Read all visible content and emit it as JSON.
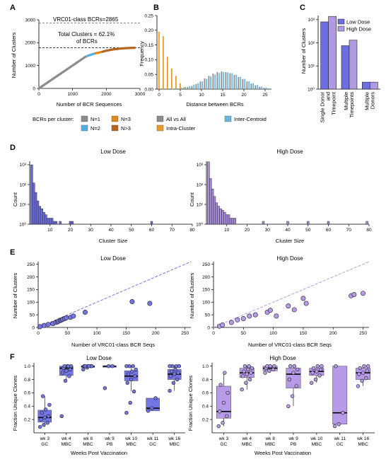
{
  "panels": {
    "A": {
      "label": "A",
      "ylabel": "Number of Clusters",
      "xlabel": "Number of BCR Sequences",
      "xticks": [
        "0",
        "1000",
        "2000",
        "3000"
      ],
      "yticks": [
        "0",
        "1000",
        "2000",
        "3000"
      ],
      "ref_label": "VRC01-class BCRs=2865",
      "note_line1": "Total Clusters = 62.1%",
      "note_line2": "of BCRs",
      "legend_title": "BCRs per cluster:",
      "legend": [
        {
          "label": "N=1",
          "color": "#8c8c8c"
        },
        {
          "label": "N=2",
          "color": "#4fb1e3"
        },
        {
          "label": "N=3",
          "color": "#e08a1e"
        },
        {
          "label": "N>3",
          "color": "#b5651d"
        }
      ]
    },
    "B": {
      "label": "B",
      "ylabel": "Frequency",
      "xlabel": "Distance between BCRs",
      "xticks": [
        "0",
        "5",
        "10",
        "15",
        "20",
        "25"
      ],
      "yticks": [
        "0.00",
        "0.05",
        "0.10",
        "0.15",
        "0.20",
        "0.25"
      ],
      "legend": [
        {
          "label": "All vs All",
          "color": "#8c8c8c"
        },
        {
          "label": "Intra-Cluster",
          "color": "#e89b2a"
        },
        {
          "label": "Inter-Centroid",
          "color": "#6bb8de"
        }
      ]
    },
    "C": {
      "label": "C",
      "ylabel": "Number of Clusters",
      "yticks": [
        "10⁰",
        "10¹",
        "10²",
        "10³"
      ],
      "legend": [
        {
          "label": "Low Dose",
          "color": "#6d6ee0"
        },
        {
          "label": "High Dose",
          "color": "#b09ae2"
        }
      ]
    },
    "D": {
      "label": "D",
      "ylabel": "Count",
      "xlabel": "Cluster Size",
      "titles": [
        "Low Dose",
        "High Dose"
      ],
      "xticks": [
        "10",
        "20",
        "30",
        "40",
        "50",
        "60",
        "70",
        "80"
      ],
      "yticks": [
        "10⁰",
        "10¹",
        "10²",
        "10³"
      ]
    },
    "E": {
      "label": "E",
      "ylabel": "Number of Clusters",
      "xlabel": "Number of VRC01-class BCR Seqs",
      "titles": [
        "Low Dose",
        "High Dose"
      ],
      "xticks": [
        "0",
        "50",
        "100",
        "150",
        "200",
        "250"
      ],
      "yticks": [
        "0",
        "50",
        "100",
        "150",
        "200",
        "250"
      ]
    },
    "F": {
      "label": "F",
      "ylabel": "Fraction Unique Clones",
      "xlabel": "Weeks Post Vaccination",
      "titles": [
        "Low Dose",
        "High Dose"
      ],
      "yticks": [
        "0.2",
        "0.4",
        "0.6",
        "0.8",
        "1.0"
      ]
    }
  },
  "chart_data": [
    {
      "type": "line",
      "id": "A",
      "xlim": [
        0,
        3000
      ],
      "ylim": [
        0,
        3000
      ],
      "reference_line": 2865,
      "total_clusters_line": 1779,
      "segments": [
        {
          "name": "N=1",
          "x": [
            0,
            1400
          ],
          "y": [
            0,
            1400
          ]
        },
        {
          "name": "N=2",
          "x": [
            1400,
            1640
          ],
          "y": [
            1400,
            1520
          ]
        },
        {
          "name": "N=3",
          "x": [
            1640,
            1860
          ],
          "y": [
            1520,
            1593
          ]
        },
        {
          "name": "N>3",
          "x": [
            1860,
            2000,
            2200,
            2400,
            2600,
            2865
          ],
          "y": [
            1593,
            1650,
            1705,
            1740,
            1762,
            1779
          ]
        }
      ]
    },
    {
      "type": "bar",
      "id": "B",
      "xlim": [
        0,
        27
      ],
      "ylim": [
        0,
        0.25
      ],
      "x": [
        0,
        1,
        2,
        3,
        4,
        5,
        6,
        7,
        8,
        9,
        10,
        11,
        12,
        13,
        14,
        15,
        16,
        17,
        18,
        19,
        20,
        21,
        22,
        23,
        24,
        25,
        26
      ],
      "series": [
        {
          "name": "All vs All",
          "values": [
            0,
            0,
            0,
            0,
            0,
            0.002,
            0.004,
            0.007,
            0.011,
            0.017,
            0.026,
            0.036,
            0.045,
            0.053,
            0.058,
            0.06,
            0.058,
            0.054,
            0.048,
            0.041,
            0.034,
            0.026,
            0.019,
            0.013,
            0.008,
            0.004,
            0.002
          ]
        },
        {
          "name": "Intra-Cluster",
          "values": [
            0.195,
            0.18,
            0.11,
            0.07,
            0.045,
            0.02,
            0.006,
            0.002,
            0,
            0,
            0,
            0,
            0,
            0,
            0,
            0,
            0,
            0,
            0,
            0,
            0,
            0,
            0,
            0,
            0,
            0,
            0
          ]
        },
        {
          "name": "Inter-Centroid",
          "values": [
            0,
            0,
            0,
            0.001,
            0.003,
            0.005,
            0.007,
            0.01,
            0.015,
            0.02,
            0.027,
            0.035,
            0.043,
            0.05,
            0.055,
            0.058,
            0.057,
            0.054,
            0.049,
            0.042,
            0.035,
            0.027,
            0.02,
            0.014,
            0.009,
            0.005,
            0.002
          ]
        }
      ]
    },
    {
      "type": "bar",
      "id": "C",
      "log_y": true,
      "ylim": [
        1,
        1500
      ],
      "categories": [
        "Single Donor and Timepoint",
        "Multiple Timepoints",
        "Multiple Donors"
      ],
      "series": [
        {
          "name": "Low Dose",
          "values": [
            800,
            75,
            2
          ]
        },
        {
          "name": "High Dose",
          "values": [
            1380,
            130,
            2
          ]
        }
      ]
    },
    {
      "type": "bar",
      "id": "D-low",
      "title": "Low Dose",
      "log_y": true,
      "xlim": [
        0,
        80
      ],
      "ylim": [
        1,
        1500
      ],
      "x": [
        1,
        2,
        3,
        4,
        5,
        6,
        7,
        8,
        9,
        10,
        11,
        12,
        13,
        14,
        15,
        16,
        17,
        18,
        19,
        20,
        21,
        22,
        23,
        24,
        25,
        26,
        27,
        28,
        29,
        30,
        31,
        32,
        33,
        34,
        35,
        36,
        37,
        38,
        39,
        40,
        41,
        42,
        43,
        44,
        45,
        46,
        47,
        48,
        49,
        50,
        51,
        52,
        53,
        54,
        55,
        56,
        57,
        58,
        59,
        60
      ],
      "values": [
        990,
        120,
        40,
        15,
        8,
        6,
        4,
        3,
        2,
        2,
        2,
        1,
        1,
        0,
        1,
        0,
        0,
        0,
        0,
        1,
        1,
        0,
        0,
        0,
        0,
        0,
        0,
        0,
        0,
        0,
        0,
        0,
        0,
        0,
        0,
        0,
        0,
        0,
        0,
        0,
        0,
        0,
        0,
        0,
        0,
        0,
        0,
        0,
        0,
        0,
        0,
        0,
        0,
        0,
        0,
        0,
        0,
        0,
        0,
        1
      ]
    },
    {
      "type": "bar",
      "id": "D-high",
      "title": "High Dose",
      "log_y": true,
      "xlim": [
        0,
        80
      ],
      "ylim": [
        1,
        1500
      ],
      "x": [
        1,
        2,
        3,
        4,
        5,
        6,
        7,
        8,
        9,
        10,
        11,
        12,
        13,
        14,
        15,
        16,
        17,
        18,
        19,
        20,
        21,
        22,
        23,
        24,
        25,
        26,
        27,
        28,
        29,
        30,
        31,
        32,
        33,
        34,
        35,
        36,
        37,
        38,
        39,
        40,
        41,
        42,
        43,
        44,
        45,
        46,
        47,
        48,
        49,
        50,
        51,
        52,
        53,
        54,
        55,
        56,
        57,
        58,
        59,
        60,
        61,
        62,
        63,
        64,
        65,
        66,
        67,
        68,
        69,
        70,
        71,
        72,
        73,
        74,
        75,
        76,
        77,
        78,
        79
      ],
      "values": [
        1400,
        200,
        60,
        25,
        12,
        8,
        6,
        5,
        4,
        3,
        3,
        2,
        2,
        2,
        0,
        0,
        0,
        0,
        0,
        0,
        0,
        0,
        0,
        0,
        0,
        0,
        0,
        1,
        0,
        0,
        0,
        0,
        0,
        0,
        0,
        0,
        0,
        0,
        0,
        1,
        0,
        0,
        0,
        0,
        0,
        0,
        0,
        0,
        0,
        1,
        0,
        0,
        0,
        0,
        0,
        0,
        0,
        0,
        0,
        1,
        0,
        0,
        0,
        0,
        0,
        0,
        0,
        0,
        0,
        0,
        0,
        0,
        0,
        0,
        0,
        0,
        0,
        0,
        1
      ]
    },
    {
      "type": "scatter",
      "id": "E-low",
      "title": "Low Dose",
      "xlim": [
        0,
        260
      ],
      "ylim": [
        0,
        260
      ],
      "x": [
        3,
        10,
        17,
        25,
        30,
        33,
        35,
        38,
        40,
        42,
        45,
        48,
        55,
        60,
        80,
        160,
        190
      ],
      "y": [
        3,
        8,
        12,
        15,
        20,
        22,
        25,
        28,
        30,
        32,
        35,
        38,
        40,
        45,
        60,
        102,
        95
      ]
    },
    {
      "type": "scatter",
      "id": "E-high",
      "title": "High Dose",
      "xlim": [
        0,
        260
      ],
      "ylim": [
        0,
        260
      ],
      "x": [
        10,
        15,
        30,
        40,
        50,
        60,
        70,
        90,
        95,
        105,
        125,
        135,
        150,
        155,
        230,
        235,
        250
      ],
      "y": [
        5,
        10,
        20,
        30,
        35,
        45,
        50,
        60,
        68,
        45,
        85,
        70,
        115,
        95,
        125,
        130,
        135
      ]
    },
    {
      "type": "box",
      "id": "F-low",
      "title": "Low Dose",
      "ylim": [
        0,
        1.05
      ],
      "categories": [
        "wk 3\nGC",
        "wk 4\nMBC",
        "wk 8\nMBC",
        "wk 9\nPB",
        "wk 10\nMBC",
        "wk 11\nGC",
        "wk 16\nMBC"
      ],
      "boxes": [
        {
          "q1": 0.16,
          "median": 0.23,
          "q3": 0.34,
          "lo": 0.09,
          "hi": 0.55
        },
        {
          "q1": 0.86,
          "median": 0.97,
          "q3": 1.0,
          "lo": 0.78,
          "hi": 1.0
        },
        {
          "q1": 0.98,
          "median": 1.0,
          "q3": 1.0,
          "lo": 0.95,
          "hi": 1.0
        },
        {
          "q1": 1.0,
          "median": 1.0,
          "q3": 1.0,
          "lo": 1.0,
          "hi": 1.0
        },
        {
          "q1": 0.78,
          "median": 0.85,
          "q3": 0.93,
          "lo": 0.62,
          "hi": 1.0
        },
        {
          "q1": 0.33,
          "median": 0.37,
          "q3": 0.52,
          "lo": 0.33,
          "hi": 0.52
        },
        {
          "q1": 0.8,
          "median": 0.88,
          "q3": 0.95,
          "lo": 0.63,
          "hi": 1.0
        }
      ],
      "points": [
        [
          0.09,
          0.12,
          0.15,
          0.2,
          0.23,
          0.25,
          0.3,
          0.35,
          0.42,
          0.55
        ],
        [
          0.25,
          0.78,
          0.85,
          0.9,
          0.93,
          0.95,
          0.97,
          1.0,
          1.0,
          1.0,
          1.0
        ],
        [
          0.95,
          0.98,
          1.0,
          1.0,
          1.0,
          1.0,
          1.0,
          1.0
        ],
        [
          0.67,
          1.0,
          1.0
        ],
        [
          0.3,
          0.45,
          0.62,
          0.75,
          0.8,
          0.85,
          0.88,
          0.92,
          0.95,
          1.0,
          1.0,
          1.0
        ],
        [
          0.33,
          0.37,
          0.52
        ],
        [
          0.63,
          0.75,
          0.8,
          0.85,
          0.88,
          0.9,
          0.92,
          0.95,
          1.0,
          1.0,
          1.0,
          1.0
        ]
      ]
    },
    {
      "type": "box",
      "id": "F-high",
      "title": "High Dose",
      "ylim": [
        0,
        1.05
      ],
      "categories": [
        "wk 3\nGC",
        "wk 4\nMBC",
        "wk 8\nMBC",
        "wk 9\nPB",
        "wk 10\nMBC",
        "wk 11\nGC",
        "wk 16\nMBC"
      ],
      "boxes": [
        {
          "q1": 0.22,
          "median": 0.32,
          "q3": 0.7,
          "lo": 0.1,
          "hi": 0.9
        },
        {
          "q1": 0.83,
          "median": 0.9,
          "q3": 0.97,
          "lo": 0.65,
          "hi": 1.0
        },
        {
          "q1": 0.93,
          "median": 0.97,
          "q3": 1.0,
          "lo": 0.9,
          "hi": 1.0
        },
        {
          "q1": 0.67,
          "median": 0.88,
          "q3": 0.97,
          "lo": 0.4,
          "hi": 1.0
        },
        {
          "q1": 0.86,
          "median": 0.92,
          "q3": 0.97,
          "lo": 0.75,
          "hi": 1.0
        },
        {
          "q1": 0.13,
          "median": 0.3,
          "q3": 1.0,
          "lo": 0.1,
          "hi": 1.0
        },
        {
          "q1": 0.8,
          "median": 0.9,
          "q3": 0.97,
          "lo": 0.7,
          "hi": 1.0
        }
      ],
      "points": [
        [
          0.1,
          0.15,
          0.25,
          0.32,
          0.45,
          0.6,
          0.72,
          0.9
        ],
        [
          0.65,
          0.75,
          0.8,
          0.85,
          0.88,
          0.9,
          0.92,
          0.95,
          0.97,
          1.0,
          1.0
        ],
        [
          0.9,
          0.93,
          0.95,
          0.97,
          1.0,
          1.0,
          1.0
        ],
        [
          0.4,
          0.55,
          0.7,
          0.8,
          0.9,
          0.95,
          1.0,
          1.0
        ],
        [
          0.75,
          0.8,
          0.86,
          0.9,
          0.92,
          0.95,
          0.97,
          1.0,
          1.0
        ],
        [
          0.1,
          0.13,
          0.3,
          1.0
        ],
        [
          0.7,
          0.78,
          0.82,
          0.88,
          0.9,
          0.93,
          0.97,
          1.0,
          1.0
        ]
      ]
    }
  ]
}
